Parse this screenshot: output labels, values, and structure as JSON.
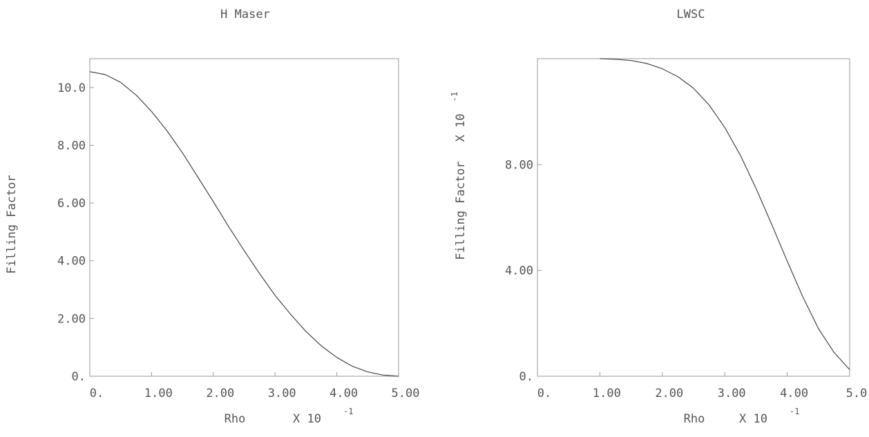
{
  "chart_data": [
    {
      "type": "line",
      "title": "H Maser",
      "xlabel": "Rho",
      "xlabel_multiplier": "X 10",
      "xlabel_exponent": "-1",
      "ylabel": "Filling Factor",
      "ylabel_multiplier": "",
      "ylabel_exponent": "",
      "xlim": [
        0,
        5.0
      ],
      "ylim": [
        0,
        11.0
      ],
      "xticks": [
        {
          "value": 0,
          "label": "0."
        },
        {
          "value": 1,
          "label": "1.00"
        },
        {
          "value": 2,
          "label": "2.00"
        },
        {
          "value": 3,
          "label": "3.00"
        },
        {
          "value": 4,
          "label": "4.00"
        },
        {
          "value": 5,
          "label": "5.00"
        }
      ],
      "yticks": [
        {
          "value": 0,
          "label": "0."
        },
        {
          "value": 2,
          "label": "2.00"
        },
        {
          "value": 4,
          "label": "4.00"
        },
        {
          "value": 6,
          "label": "6.00"
        },
        {
          "value": 8,
          "label": "8.00"
        },
        {
          "value": 10,
          "label": "10.0"
        }
      ],
      "grid": false,
      "series": [
        {
          "x": [
            0,
            0.25,
            0.5,
            0.75,
            1.0,
            1.25,
            1.5,
            1.75,
            2.0,
            2.25,
            2.5,
            2.75,
            3.0,
            3.25,
            3.5,
            3.75,
            4.0,
            4.25,
            4.5,
            4.75,
            5.0
          ],
          "y": [
            10.55,
            10.45,
            10.18,
            9.74,
            9.17,
            8.5,
            7.74,
            6.9,
            6.05,
            5.18,
            4.35,
            3.55,
            2.8,
            2.15,
            1.55,
            1.05,
            0.65,
            0.35,
            0.15,
            0.04,
            0
          ]
        }
      ]
    },
    {
      "type": "line",
      "title": "LWSC",
      "xlabel": "Rho",
      "xlabel_multiplier": "X 10",
      "xlabel_exponent": "-1",
      "ylabel": "Filling Factor",
      "ylabel_multiplier": "X 10",
      "ylabel_exponent": "-1",
      "xlim": [
        0,
        5.0
      ],
      "ylim": [
        0,
        12.0
      ],
      "xticks": [
        {
          "value": 0,
          "label": "0."
        },
        {
          "value": 1,
          "label": "1.00"
        },
        {
          "value": 2,
          "label": "2.00"
        },
        {
          "value": 3,
          "label": "3.00"
        },
        {
          "value": 4,
          "label": "4.00"
        },
        {
          "value": 5,
          "label": "5.0"
        }
      ],
      "yticks": [
        {
          "value": 0,
          "label": "0."
        },
        {
          "value": 4,
          "label": "4.00"
        },
        {
          "value": 8,
          "label": "8.00"
        }
      ],
      "grid": false,
      "series": [
        {
          "x": [
            1.0,
            1.25,
            1.5,
            1.75,
            2.0,
            2.25,
            2.5,
            2.75,
            3.0,
            3.25,
            3.5,
            3.75,
            4.0,
            4.25,
            4.5,
            4.75,
            5.0
          ],
          "y": [
            12.0,
            11.98,
            11.93,
            11.82,
            11.62,
            11.32,
            10.88,
            10.25,
            9.4,
            8.35,
            7.1,
            5.75,
            4.35,
            3.0,
            1.8,
            0.9,
            0.25
          ]
        }
      ]
    }
  ]
}
